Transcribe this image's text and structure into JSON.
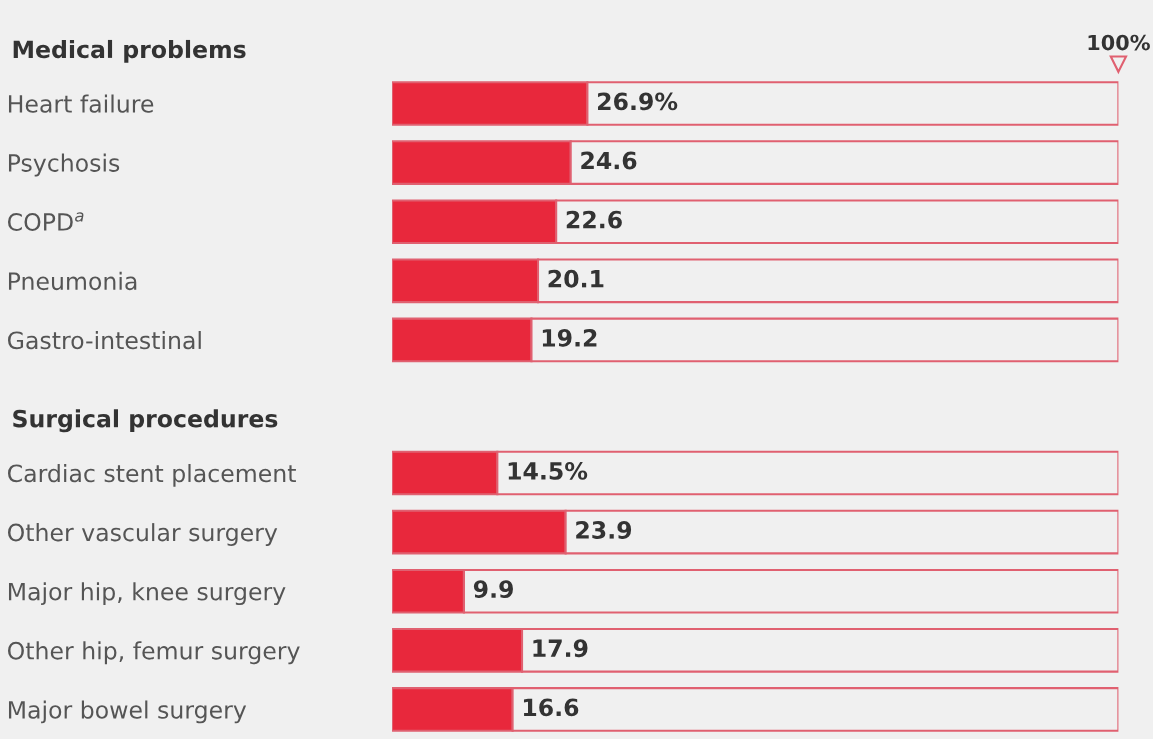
{
  "chart_data": [
    {
      "type": "bar",
      "orientation": "horizontal",
      "stacked": true,
      "title": "Medical problems",
      "categories": [
        "Heart failure",
        "Psychosis",
        "COPD$^{a}$",
        "Pneumonia",
        "Gastro-intestinal"
      ],
      "series": [
        {
          "color": "#e8283c",
          "values": [
            26.9,
            24.6,
            22.6,
            20.1,
            19.2
          ],
          "value_labels": [
            "26.9%",
            "24.6",
            "22.6",
            "20.1",
            "19.2"
          ]
        },
        {
          "color": "#f0f0f0",
          "values": [
            73.1,
            75.4,
            77.4,
            79.9,
            80.8
          ]
        }
      ],
      "xlim": [
        0,
        100
      ],
      "annotations": [
        "100%"
      ]
    },
    {
      "type": "bar",
      "orientation": "horizontal",
      "stacked": true,
      "title": "Surgical procedures",
      "categories": [
        "Cardiac stent placement",
        "Other vascular surgery",
        "Major hip, knee surgery",
        "Other hip, femur surgery",
        "Major bowel surgery"
      ],
      "series": [
        {
          "color": "#e8283c",
          "values": [
            14.5,
            23.9,
            9.9,
            17.9,
            16.6
          ],
          "value_labels": [
            "14.5%",
            "23.9",
            "9.9",
            "17.9",
            "16.6"
          ]
        },
        {
          "color": "#f0f0f0",
          "values": [
            85.5,
            76.1,
            90.1,
            82.1,
            83.4
          ]
        }
      ],
      "xlim": [
        0,
        100
      ]
    }
  ]
}
